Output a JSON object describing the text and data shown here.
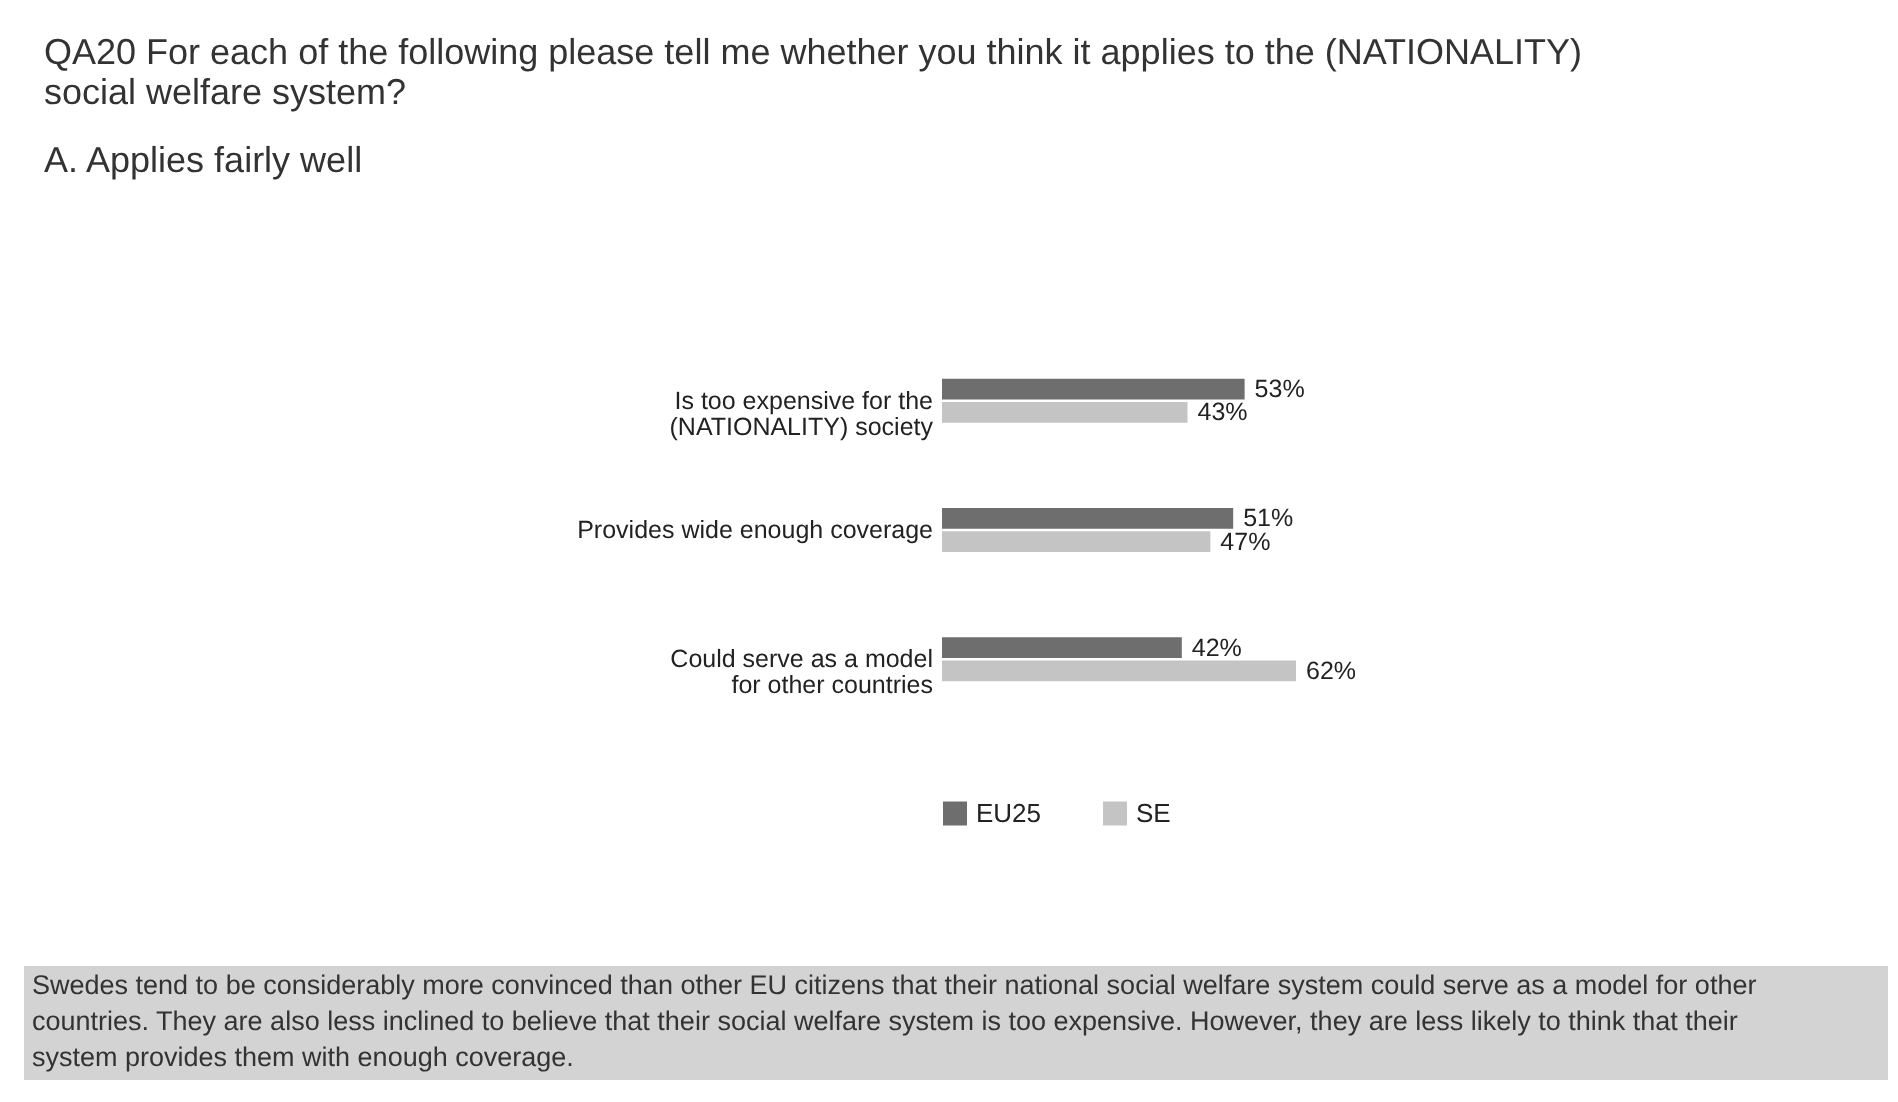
{
  "chart_data": {
    "type": "bar",
    "orientation": "horizontal",
    "title": "QA20 For each of the following please tell me whether you think it applies to the (NATIONALITY) social welfare system?",
    "subtitle": "A. Applies fairly well",
    "categories": [
      "Is too expensive for the\n(NATIONALITY) society",
      "Provides wide enough coverage",
      "Could serve as a model\nfor other countries"
    ],
    "series": [
      {
        "name": "EU25",
        "color": "#6e6e6e",
        "values": [
          53,
          51,
          42
        ],
        "value_labels": [
          "53%",
          "51%",
          "42%"
        ]
      },
      {
        "name": "SE",
        "color": "#c4c4c4",
        "values": [
          43,
          47,
          62
        ],
        "value_labels": [
          "43%",
          "47%",
          "62%"
        ]
      }
    ],
    "legend": "bottom",
    "tick_labels": "y",
    "annotations": [
      "Swedes tend to be considerably more convinced than other EU citizens that their national social welfare system could serve as a model for other countries. They are also less inclined to believe that their social welfare system is too expensive. However, they are less likely to think that their system provides them with enough coverage."
    ]
  }
}
